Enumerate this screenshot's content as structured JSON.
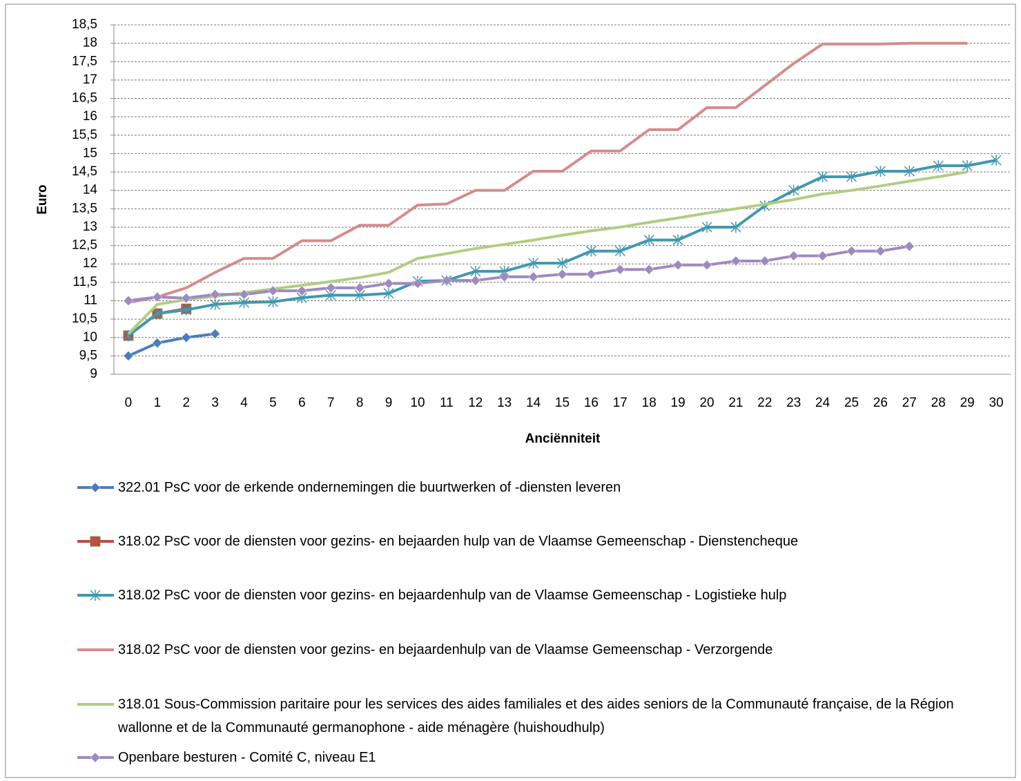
{
  "chart_data": {
    "type": "line",
    "xlabel": "Anciënniteit",
    "ylabel": "Euro",
    "categories": [
      "0",
      "1",
      "2",
      "3",
      "4",
      "5",
      "6",
      "7",
      "8",
      "9",
      "10",
      "11",
      "12",
      "13",
      "14",
      "15",
      "16",
      "17",
      "18",
      "19",
      "20",
      "21",
      "22",
      "23",
      "24",
      "25",
      "26",
      "27",
      "28",
      "29",
      "30"
    ],
    "ylim": [
      9,
      18.5
    ],
    "yticks": [
      9,
      {
        "value": 9.5,
        "label": "9,5"
      },
      10,
      {
        "value": 10.5,
        "label": "10,5"
      },
      11,
      {
        "value": 11.5,
        "label": "11,5"
      },
      12,
      {
        "value": 12.5,
        "label": "12,5"
      },
      13,
      {
        "value": 13.5,
        "label": "13,5"
      },
      14,
      {
        "value": 14.5,
        "label": "14,5"
      },
      15,
      {
        "value": 15.5,
        "label": "15,5"
      },
      16,
      {
        "value": 16.5,
        "label": "16,5"
      },
      17,
      {
        "value": 17.5,
        "label": "17,5"
      },
      18,
      {
        "value": 18.5,
        "label": "18,5"
      }
    ],
    "grid": true,
    "series": [
      {
        "name": "322.01 PsC voor de erkende ondernemingen die buurtwerken of -diensten leveren",
        "color": "#4a7ebb",
        "marker": "diamond",
        "values": [
          9.5,
          9.85,
          10,
          10.1,
          null,
          null,
          null,
          null,
          null,
          null,
          null,
          null,
          null,
          null,
          null,
          null,
          null,
          null,
          null,
          null,
          null,
          null,
          null,
          null,
          null,
          null,
          null,
          null,
          null,
          null,
          null
        ]
      },
      {
        "name": "318.02 PsC voor de diensten voor gezins- en bejaarden hulp van de Vlaamse  Gemeenschap  - Dienstencheque",
        "color": "#be4b48",
        "marker": "square",
        "values": [
          10.05,
          10.65,
          10.78,
          null,
          null,
          null,
          null,
          null,
          null,
          null,
          null,
          null,
          null,
          null,
          null,
          null,
          null,
          null,
          null,
          null,
          null,
          null,
          null,
          null,
          null,
          null,
          null,
          null,
          null,
          null,
          null
        ]
      },
      {
        "name": "318.02 PsC voor de diensten voor gezins- en bejaardenhulp van de Vlaamse  Gemeenschap - Logistieke hulp",
        "color": "#4198af",
        "marker": "star",
        "values": [
          10.05,
          10.65,
          10.75,
          10.9,
          10.95,
          10.97,
          11.08,
          11.15,
          11.15,
          11.2,
          11.53,
          11.55,
          11.8,
          11.8,
          12.02,
          12.02,
          12.35,
          12.35,
          12.65,
          12.65,
          13,
          13,
          13.58,
          14,
          14.37,
          14.37,
          14.52,
          14.52,
          14.67,
          14.67,
          14.82
        ]
      },
      {
        "name": "318.02 PsC voor de diensten voor gezins- en bejaardenhulp van de Vlaamse  Gemeenschap - Verzorgende",
        "color": "#d48c8c",
        "marker": "none",
        "values": [
          10.95,
          11.1,
          11.35,
          11.77,
          12.15,
          12.15,
          12.63,
          12.63,
          13.05,
          13.05,
          13.6,
          13.63,
          14,
          14,
          14.52,
          14.52,
          15.07,
          15.07,
          15.65,
          15.65,
          16.25,
          16.25,
          16.85,
          17.45,
          17.98,
          17.98,
          17.98,
          18,
          18,
          18,
          null
        ]
      },
      {
        "name": "318.01 Sous-Commission  paritaire pour les services des aides familiales et des aides seniors de la Communauté française, de la Région wallonne et de la Communauté  germanophone - aide ménagère (huishoudhulp)",
        "color": "#b3cc82",
        "marker": "none",
        "values": [
          10.1,
          10.9,
          11.03,
          11.12,
          11.22,
          11.32,
          11.42,
          11.52,
          11.63,
          11.77,
          12.15,
          12.28,
          12.42,
          12.53,
          12.65,
          12.78,
          12.9,
          13,
          13.13,
          13.25,
          13.38,
          13.5,
          13.62,
          13.75,
          13.9,
          14,
          14.12,
          14.25,
          14.37,
          14.5,
          null
        ]
      },
      {
        "name": "Openbare besturen - Comité  C, niveau E1",
        "color": "#9e8ac0",
        "marker": "diamond",
        "values": [
          11,
          11.1,
          11.07,
          11.17,
          11.17,
          11.27,
          11.27,
          11.35,
          11.35,
          11.47,
          11.47,
          11.55,
          11.55,
          11.65,
          11.65,
          11.72,
          11.72,
          11.85,
          11.85,
          11.97,
          11.97,
          12.08,
          12.08,
          12.22,
          12.22,
          12.35,
          12.35,
          12.48,
          null,
          null,
          null
        ]
      }
    ]
  }
}
